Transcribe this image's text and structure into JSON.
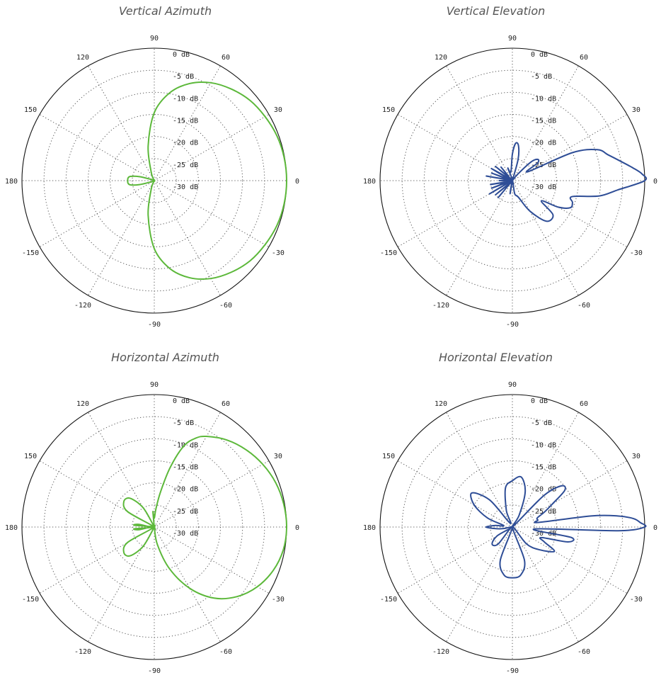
{
  "chart_data": [
    {
      "type": "polar-line",
      "title": "Vertical Azimuth",
      "color": "#5cb83a",
      "radial_range_db": [
        -30,
        0
      ],
      "ring_labels": [
        "0 dB",
        "-5 dB",
        "-10 dB",
        "-15 dB",
        "-20 dB",
        "-25 dB",
        "-30 dB"
      ],
      "angle_labels": [
        "0",
        "30",
        "60",
        "90",
        "120",
        "150",
        "180",
        "-150",
        "-120",
        "-90",
        "-60",
        "-30"
      ],
      "grid": true,
      "series": [
        {
          "angles_deg": [
            0,
            10,
            20,
            30,
            40,
            50,
            60,
            70,
            80,
            90,
            100,
            110,
            120,
            130,
            140,
            150,
            160,
            165,
            170,
            175,
            180,
            -175,
            -170,
            -165,
            -160,
            -150,
            -140,
            -130,
            -120,
            -110,
            -100,
            -90,
            -80,
            -70,
            -60,
            -50,
            -40,
            -30,
            -20,
            -10
          ],
          "values_db": [
            0,
            -0.1,
            -0.4,
            -1.0,
            -1.7,
            -2.9,
            -4.4,
            -6.6,
            -9.8,
            -14.6,
            -22,
            -28,
            -30,
            -30,
            -30,
            -30,
            -29,
            -26.5,
            -24.5,
            -24,
            -24,
            -24,
            -24.5,
            -26.5,
            -29,
            -30,
            -30,
            -30,
            -30,
            -28,
            -22,
            -14.6,
            -9.8,
            -6.6,
            -4.4,
            -2.9,
            -1.7,
            -1.0,
            -0.4,
            -0.1
          ]
        }
      ]
    },
    {
      "type": "polar-line",
      "title": "Vertical Elevation",
      "color": "#2e4d96",
      "radial_range_db": [
        -30,
        0
      ],
      "ring_labels": [
        "0 dB",
        "-5 dB",
        "-10 dB",
        "-15 dB",
        "-20 dB",
        "-25 dB",
        "-30 dB"
      ],
      "angle_labels": [
        "0",
        "30",
        "60",
        "90",
        "120",
        "150",
        "180",
        "-150",
        "-120",
        "-90",
        "-60",
        "-30"
      ],
      "grid": true,
      "series": [
        {
          "angles_deg": [
            0,
            3,
            6,
            10,
            15,
            20,
            25,
            30,
            35,
            40,
            45,
            50,
            55,
            60,
            70,
            75,
            80,
            85,
            90,
            100,
            110,
            120,
            130,
            135,
            140,
            145,
            150,
            155,
            160,
            165,
            170,
            175,
            180,
            -175,
            -170,
            -165,
            -160,
            -155,
            -150,
            -145,
            -140,
            -135,
            -130,
            -120,
            -110,
            -100,
            -90,
            -80,
            -70,
            -60,
            -50,
            -40,
            -35,
            -30,
            -25,
            -20,
            -15,
            -10,
            -5
          ],
          "values_db": [
            0,
            -0.6,
            -2.5,
            -5,
            -7.5,
            -9.5,
            -15,
            -26,
            -23,
            -22.5,
            -24,
            -28,
            -30,
            -30,
            -30,
            -25,
            -22,
            -21.5,
            -24,
            -28,
            -27,
            -30,
            -26,
            -29,
            -25,
            -30,
            -24.5,
            -30,
            -25,
            -29,
            -24,
            -30,
            -27,
            -30,
            -25,
            -28,
            -25,
            -29,
            -24,
            -30,
            -25,
            -29,
            -25,
            -30,
            -30,
            -27,
            -30,
            -27,
            -26,
            -22,
            -18,
            -18,
            -22,
            -18,
            -15.5,
            -15.5,
            -16,
            -10,
            -6
          ]
        }
      ]
    },
    {
      "type": "polar-line",
      "title": "Horizontal Azimuth",
      "color": "#5cb83a",
      "radial_range_db": [
        -30,
        0
      ],
      "ring_labels": [
        "0 dB",
        "-5 dB",
        "-10 dB",
        "-15 dB",
        "-20 dB",
        "-25 dB",
        "-30 dB"
      ],
      "angle_labels": [
        "0",
        "30",
        "60",
        "90",
        "120",
        "150",
        "180",
        "-150",
        "-120",
        "-90",
        "-60",
        "-30"
      ],
      "grid": true,
      "series": [
        {
          "angles_deg": [
            0,
            10,
            20,
            30,
            40,
            50,
            60,
            65,
            70,
            75,
            80,
            85,
            90,
            95,
            100,
            110,
            120,
            130,
            140,
            150,
            160,
            170,
            175,
            180,
            -175,
            -170,
            -160,
            -150,
            -140,
            -130,
            -120,
            -110,
            -100,
            -90,
            -80,
            -70,
            -60,
            -50,
            -40,
            -30,
            -20,
            -10
          ],
          "values_db": [
            0,
            -0.2,
            -0.7,
            -1.6,
            -2.8,
            -4.3,
            -6.3,
            -7.8,
            -10.5,
            -16,
            -22,
            -26,
            -28,
            -26.5,
            -30,
            -30,
            -25,
            -21.5,
            -21,
            -23,
            -30,
            -26.5,
            -25.5,
            -30,
            -25.5,
            -26.5,
            -30,
            -23,
            -21,
            -21.5,
            -25,
            -30,
            -30,
            -30,
            -26,
            -20,
            -14,
            -9,
            -5.5,
            -3,
            -1.3,
            -0.3
          ]
        }
      ]
    },
    {
      "type": "polar-line",
      "title": "Horizontal Elevation",
      "color": "#2e4d96",
      "radial_range_db": [
        -30,
        0
      ],
      "ring_labels": [
        "0 dB",
        "-5 dB",
        "-10 dB",
        "-15 dB",
        "-20 dB",
        "-25 dB",
        "-30 dB"
      ],
      "angle_labels": [
        "0",
        "30",
        "60",
        "90",
        "120",
        "150",
        "180",
        "-150",
        "-120",
        "-90",
        "-60",
        "-30"
      ],
      "grid": true,
      "series": [
        {
          "angles_deg": [
            0,
            2,
            4,
            6,
            8,
            10,
            15,
            20,
            25,
            30,
            35,
            40,
            45,
            50,
            60,
            70,
            80,
            90,
            100,
            110,
            120,
            130,
            140,
            150,
            160,
            170,
            175,
            180,
            -175,
            -170,
            -160,
            -150,
            -140,
            -130,
            -120,
            -110,
            -100,
            -90,
            -80,
            -70,
            -60,
            -50,
            -40,
            -30,
            -25,
            -20,
            -15,
            -10,
            -5,
            -2
          ],
          "values_db": [
            0,
            -1,
            -2.5,
            -6,
            -12,
            -24,
            -24,
            -24,
            -22,
            -19.5,
            -15.5,
            -15.5,
            -20,
            -30,
            -27,
            -21.5,
            -18.5,
            -19.5,
            -21,
            -26,
            -29,
            -22,
            -18,
            -20,
            -24,
            -28,
            -26,
            -24,
            -26,
            -28,
            -30,
            -26,
            -24,
            -25,
            -30,
            -22,
            -19,
            -18.5,
            -19,
            -22,
            -30,
            -25,
            -22,
            -19,
            -22,
            -23,
            -17,
            -16.5,
            -25,
            -6
          ]
        }
      ]
    }
  ]
}
